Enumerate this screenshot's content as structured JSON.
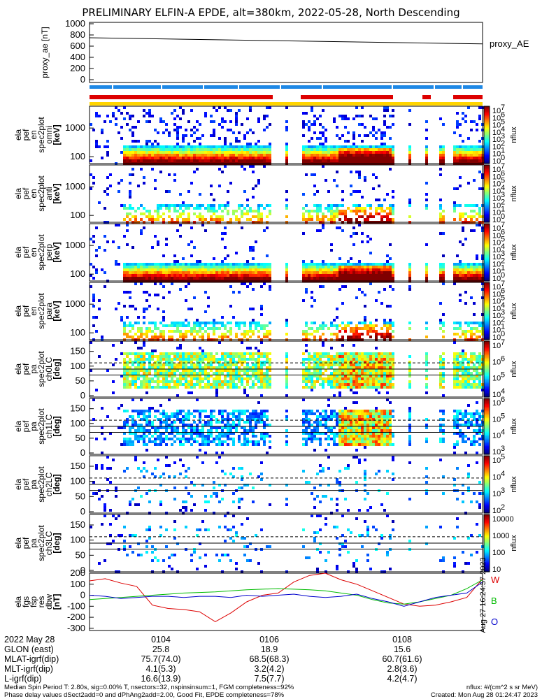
{
  "title": "PRELIMINARY ELFIN-A EPDE, alt=380km, 2022-05-28, North Descending",
  "chart_data": [
    {
      "type": "line",
      "ylabel": "proxy_ae [nT]",
      "yticks": [
        "1000",
        "800",
        "600",
        "400",
        "200",
        "0"
      ],
      "ylim": [
        0,
        1000
      ],
      "series": [
        {
          "name": "proxy_AE",
          "x_min": [
            0,
            6
          ],
          "values": [
            750,
            640
          ],
          "color": "#000000"
        }
      ]
    },
    {
      "type": "heatmap",
      "ylabel_lines": [
        "ela",
        "pef",
        "en",
        "spec2plot",
        "omni",
        "[keV]"
      ],
      "yticks": [
        "1000",
        "100"
      ],
      "colorbar_label": "nflux",
      "colorbar_ticks": [
        "10",
        "10",
        "10",
        "10",
        "10",
        "10",
        "10",
        "10"
      ],
      "colorbar_exps": [
        "7",
        "6",
        "5",
        "4",
        "3",
        "2",
        "1",
        "0"
      ]
    },
    {
      "type": "heatmap",
      "ylabel_lines": [
        "ela",
        "pef",
        "en",
        "spec2plot",
        "anti",
        "[keV]"
      ],
      "yticks": [
        "1000",
        "100"
      ],
      "colorbar_label": "nflux",
      "colorbar_ticks": [
        "10",
        "10",
        "10",
        "10",
        "10",
        "10",
        "10",
        "10"
      ],
      "colorbar_exps": [
        "7",
        "6",
        "5",
        "4",
        "3",
        "2",
        "1",
        "0"
      ]
    },
    {
      "type": "heatmap",
      "ylabel_lines": [
        "ela",
        "pef",
        "en",
        "spec2plot",
        "perp",
        "[keV]"
      ],
      "yticks": [
        "1000",
        "100"
      ],
      "colorbar_label": "nflux",
      "colorbar_ticks": [
        "10",
        "10",
        "10",
        "10",
        "10",
        "10",
        "10",
        "10"
      ],
      "colorbar_exps": [
        "7",
        "6",
        "5",
        "4",
        "3",
        "2",
        "1",
        "0"
      ]
    },
    {
      "type": "heatmap",
      "ylabel_lines": [
        "ela",
        "pef",
        "en",
        "spec2plot",
        "para",
        "[keV]"
      ],
      "yticks": [
        "1000",
        "100"
      ],
      "colorbar_label": "nflux",
      "colorbar_ticks": [
        "10",
        "10",
        "10",
        "10",
        "10",
        "10",
        "10",
        "10"
      ],
      "colorbar_exps": [
        "7",
        "6",
        "5",
        "4",
        "3",
        "2",
        "1",
        "0"
      ]
    },
    {
      "type": "heatmap",
      "ylabel_lines": [
        "ela",
        "pef",
        "pa",
        "spec2plot",
        "ch0LC",
        "[deg]"
      ],
      "yticks": [
        "150",
        "100",
        "50",
        "0"
      ],
      "colorbar_label": "nflux",
      "colorbar_ticks": [
        "10",
        "10",
        "10",
        "10"
      ],
      "colorbar_exps": [
        "7",
        "6",
        "5",
        "4"
      ]
    },
    {
      "type": "heatmap",
      "ylabel_lines": [
        "ela",
        "pef",
        "pa",
        "spec2plot",
        "ch1LC",
        "[deg]"
      ],
      "yticks": [
        "150",
        "100",
        "50",
        "0"
      ],
      "colorbar_label": "nflux",
      "colorbar_ticks": [
        "10",
        "10",
        "10",
        "10"
      ],
      "colorbar_exps": [
        "6",
        "5",
        "4",
        "3"
      ]
    },
    {
      "type": "heatmap",
      "ylabel_lines": [
        "ela",
        "pef",
        "pa",
        "spec2plot",
        "ch2LC",
        "[deg]"
      ],
      "yticks": [
        "150",
        "100",
        "50",
        "0"
      ],
      "colorbar_label": "nflux",
      "colorbar_ticks": [
        "10",
        "10",
        "10",
        "10"
      ],
      "colorbar_exps": [
        "5",
        "4",
        "3",
        "2"
      ]
    },
    {
      "type": "heatmap",
      "ylabel_lines": [
        "ela",
        "pef",
        "pa",
        "spec2plot",
        "ch3LC",
        "[deg]"
      ],
      "yticks": [
        "150",
        "100",
        "50",
        "0"
      ],
      "colorbar_label": "nflux",
      "colorbar_ticks": [
        "10000",
        "1000",
        "100",
        "10"
      ],
      "colorbar_exps": [
        "",
        "",
        "",
        ""
      ]
    },
    {
      "type": "line",
      "ylabel_lines": [
        "ela",
        "fgs",
        "fsp",
        "res",
        "dbw",
        "[nT]"
      ],
      "yticks": [
        "200",
        "100",
        "0",
        "-100",
        "-200",
        "-300"
      ],
      "ylim": [
        -320,
        200
      ],
      "legend": [
        "W",
        "B",
        "O"
      ],
      "series": [
        {
          "name": "W",
          "color": "#dd0000",
          "values": [
            130,
            150,
            110,
            80,
            -90,
            -120,
            -130,
            -150,
            -240,
            -160,
            -60,
            0,
            20,
            120,
            180,
            200,
            140,
            100,
            40,
            -20,
            -80,
            -100,
            -90,
            -60,
            -20,
            150
          ]
        },
        {
          "name": "B",
          "color": "#00bb00",
          "values": [
            -40,
            -30,
            -20,
            -10,
            0,
            10,
            20,
            25,
            30,
            40,
            50,
            55,
            60,
            55,
            50,
            40,
            20,
            0,
            -40,
            -70,
            -80,
            -60,
            -30,
            0,
            60,
            140
          ]
        },
        {
          "name": "O",
          "color": "#0000cc",
          "values": [
            0,
            -10,
            -30,
            -20,
            -10,
            -10,
            -20,
            -10,
            -10,
            -20,
            0,
            -10,
            0,
            10,
            -10,
            -20,
            -10,
            10,
            -30,
            -60,
            -100,
            -60,
            -20,
            0,
            20,
            120
          ]
        }
      ],
      "side_text": "Sat Aug 27 16:24:57 2023"
    }
  ],
  "xaxis": {
    "ticks": [
      "0104",
      "0106",
      "0108"
    ]
  },
  "footer": {
    "rows": [
      {
        "label": "2022 May 28",
        "values": [
          "0104",
          "0106",
          "0108"
        ]
      },
      {
        "label": "GLON (east)",
        "values": [
          "25.8",
          "18.9",
          "15.6"
        ]
      },
      {
        "label": "MLAT-igrf(dip)",
        "values": [
          "75.7(74.0)",
          "68.5(68.3)",
          "60.7(61.6)"
        ]
      },
      {
        "label": "MLT-igrf(dip)",
        "values": [
          "4.1(5.3)",
          "3.2(4.2)",
          "2.8(3.6)"
        ]
      },
      {
        "label": "L-igrf(dip)",
        "values": [
          "16.6(13.9)",
          "7.5(7.7)",
          "4.2(4.7)"
        ]
      }
    ]
  },
  "notes": {
    "line1_left": "Median Spin Period T: 2.80s, sig=0.00% T, nsectors=32, nspinsinsum=1, FGM completeness=92%",
    "line1_right": "nflux: #/(cm^2 s sr MeV)",
    "line2_left": "Phase delay values dSect2add=0 and dPhAng2add=2.00, Good Fit, EPDE completeness=78%",
    "line2_right": "Created: Mon Aug 28 01:24:47 2023"
  },
  "colors": {
    "red_bar": "#dd0000",
    "blue_bar": "#1e88e5",
    "yellow_bar": "#ffd400"
  }
}
